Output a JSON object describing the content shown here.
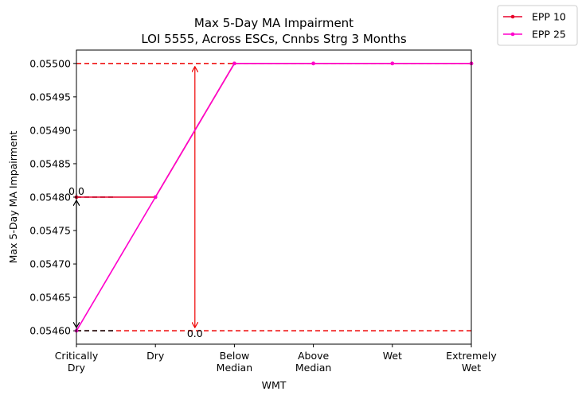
{
  "chart_data": {
    "type": "line",
    "title": "Max 5-Day MA Impairment",
    "subtitle": "LOI 5555, Across ESCs, Cnnbs Strg 3 Months",
    "xlabel": "WMT",
    "ylabel": "Max 5-Day MA Impairment",
    "categories": [
      "Critically\nDry",
      "Dry",
      "Below\nMedian",
      "Above\nMedian",
      "Wet",
      "Extremely\nWet"
    ],
    "ylim": [
      0.05458,
      0.05502
    ],
    "yticks": [
      "0.05460",
      "0.05465",
      "0.05470",
      "0.05475",
      "0.05480",
      "0.05485",
      "0.05490",
      "0.05495",
      "0.05500"
    ],
    "ytick_values": [
      0.0546,
      0.05465,
      0.0547,
      0.05475,
      0.0548,
      0.05485,
      0.0549,
      0.05495,
      0.055
    ],
    "series": [
      {
        "name": "EPP 10",
        "color": "#e8002a",
        "values": [
          0.0548,
          0.0548,
          0.055,
          0.055,
          0.055,
          0.055
        ]
      },
      {
        "name": "EPP 25",
        "color": "#ff00cc",
        "values": [
          0.0546,
          0.0548,
          0.055,
          0.055,
          0.055,
          0.055
        ]
      }
    ],
    "hlines": [
      {
        "y": 0.055,
        "color": "#ee0000",
        "style": "dashed"
      },
      {
        "y": 0.0546,
        "color": "#ee0000",
        "style": "dashed"
      }
    ],
    "annotations": [
      {
        "text": "0.0",
        "color": "#000000",
        "x_cat": 0,
        "y_from": 0.0546,
        "y_to": 0.0548
      },
      {
        "text": "0.0",
        "color": "#ee0000",
        "x_cat": 1.5,
        "y_from": 0.0546,
        "y_to": 0.055
      }
    ],
    "legend_position": "outside-top-right",
    "grid": false
  }
}
